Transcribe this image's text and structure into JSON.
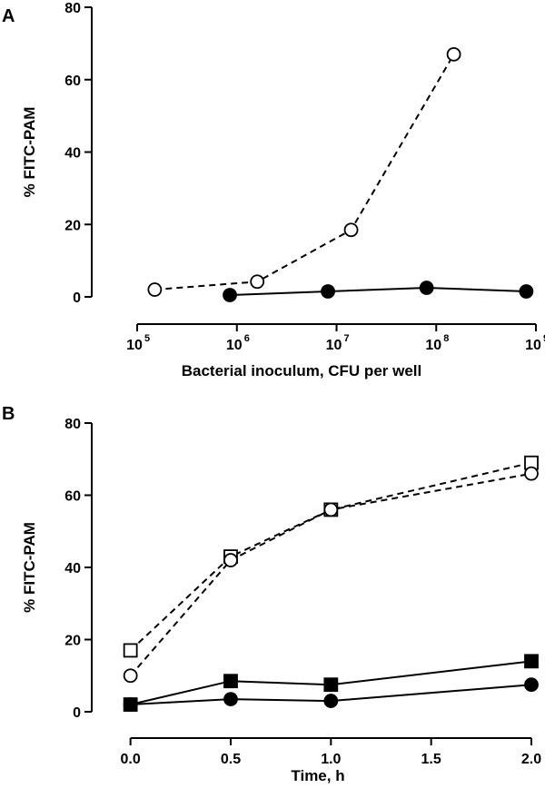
{
  "chart_data": [
    {
      "panel": "A",
      "type": "line",
      "xlabel": "Bacterial inoculum, CFU per well",
      "ylabel": "% FITC-PAM",
      "xscale": "log",
      "xlim": [
        50000,
        1000000000
      ],
      "ylim": [
        0,
        80
      ],
      "yticks": [
        0,
        20,
        40,
        60,
        80
      ],
      "xticks": [
        {
          "value": 100000,
          "base": "10",
          "exp": "5"
        },
        {
          "value": 1000000,
          "base": "10",
          "exp": "6"
        },
        {
          "value": 10000000,
          "base": "10",
          "exp": "7"
        },
        {
          "value": 100000000,
          "base": "10",
          "exp": "8"
        },
        {
          "value": 1000000000,
          "base": "10",
          "exp": "9"
        }
      ],
      "series": [
        {
          "marker": "open-circle",
          "line": "dashed",
          "color": "#000000",
          "points": [
            [
              150000,
              2
            ],
            [
              1600000,
              4.2
            ],
            [
              14000000,
              18.5
            ],
            [
              150000000,
              67
            ]
          ]
        },
        {
          "marker": "filled-circle",
          "line": "solid",
          "color": "#000000",
          "points": [
            [
              850000,
              0.5
            ],
            [
              8200000,
              1.5
            ],
            [
              80000000,
              2.5
            ],
            [
              800000000,
              1.5
            ]
          ]
        }
      ]
    },
    {
      "panel": "B",
      "type": "line",
      "xlabel": "Time, h",
      "ylabel": "% FITC-PAM",
      "xscale": "linear",
      "xlim": [
        -0.08,
        2.0
      ],
      "ylim": [
        0,
        80
      ],
      "yticks": [
        0,
        20,
        40,
        60,
        80
      ],
      "xticks": [
        {
          "value": 0,
          "label": "0.0"
        },
        {
          "value": 0.5,
          "label": "0.5"
        },
        {
          "value": 1.0,
          "label": "1.0"
        },
        {
          "value": 1.5,
          "label": "1.5"
        },
        {
          "value": 2.0,
          "label": "2.0"
        }
      ],
      "series": [
        {
          "marker": "open-square",
          "line": "dashed",
          "color": "#000000",
          "points": [
            [
              0,
              17
            ],
            [
              0.5,
              43
            ],
            [
              1.0,
              56
            ],
            [
              2.0,
              69
            ]
          ]
        },
        {
          "marker": "open-circle",
          "line": "dashed",
          "color": "#000000",
          "points": [
            [
              0,
              10
            ],
            [
              0.5,
              42
            ],
            [
              1.0,
              56
            ],
            [
              2.0,
              66
            ]
          ]
        },
        {
          "marker": "filled-square",
          "line": "solid",
          "color": "#000000",
          "points": [
            [
              0,
              2
            ],
            [
              0.5,
              8.5
            ],
            [
              1.0,
              7.5
            ],
            [
              2.0,
              14
            ]
          ]
        },
        {
          "marker": "filled-circle",
          "line": "solid",
          "color": "#000000",
          "points": [
            [
              0,
              2
            ],
            [
              0.5,
              3.5
            ],
            [
              1.0,
              3
            ],
            [
              2.0,
              7.5
            ]
          ]
        }
      ]
    }
  ]
}
